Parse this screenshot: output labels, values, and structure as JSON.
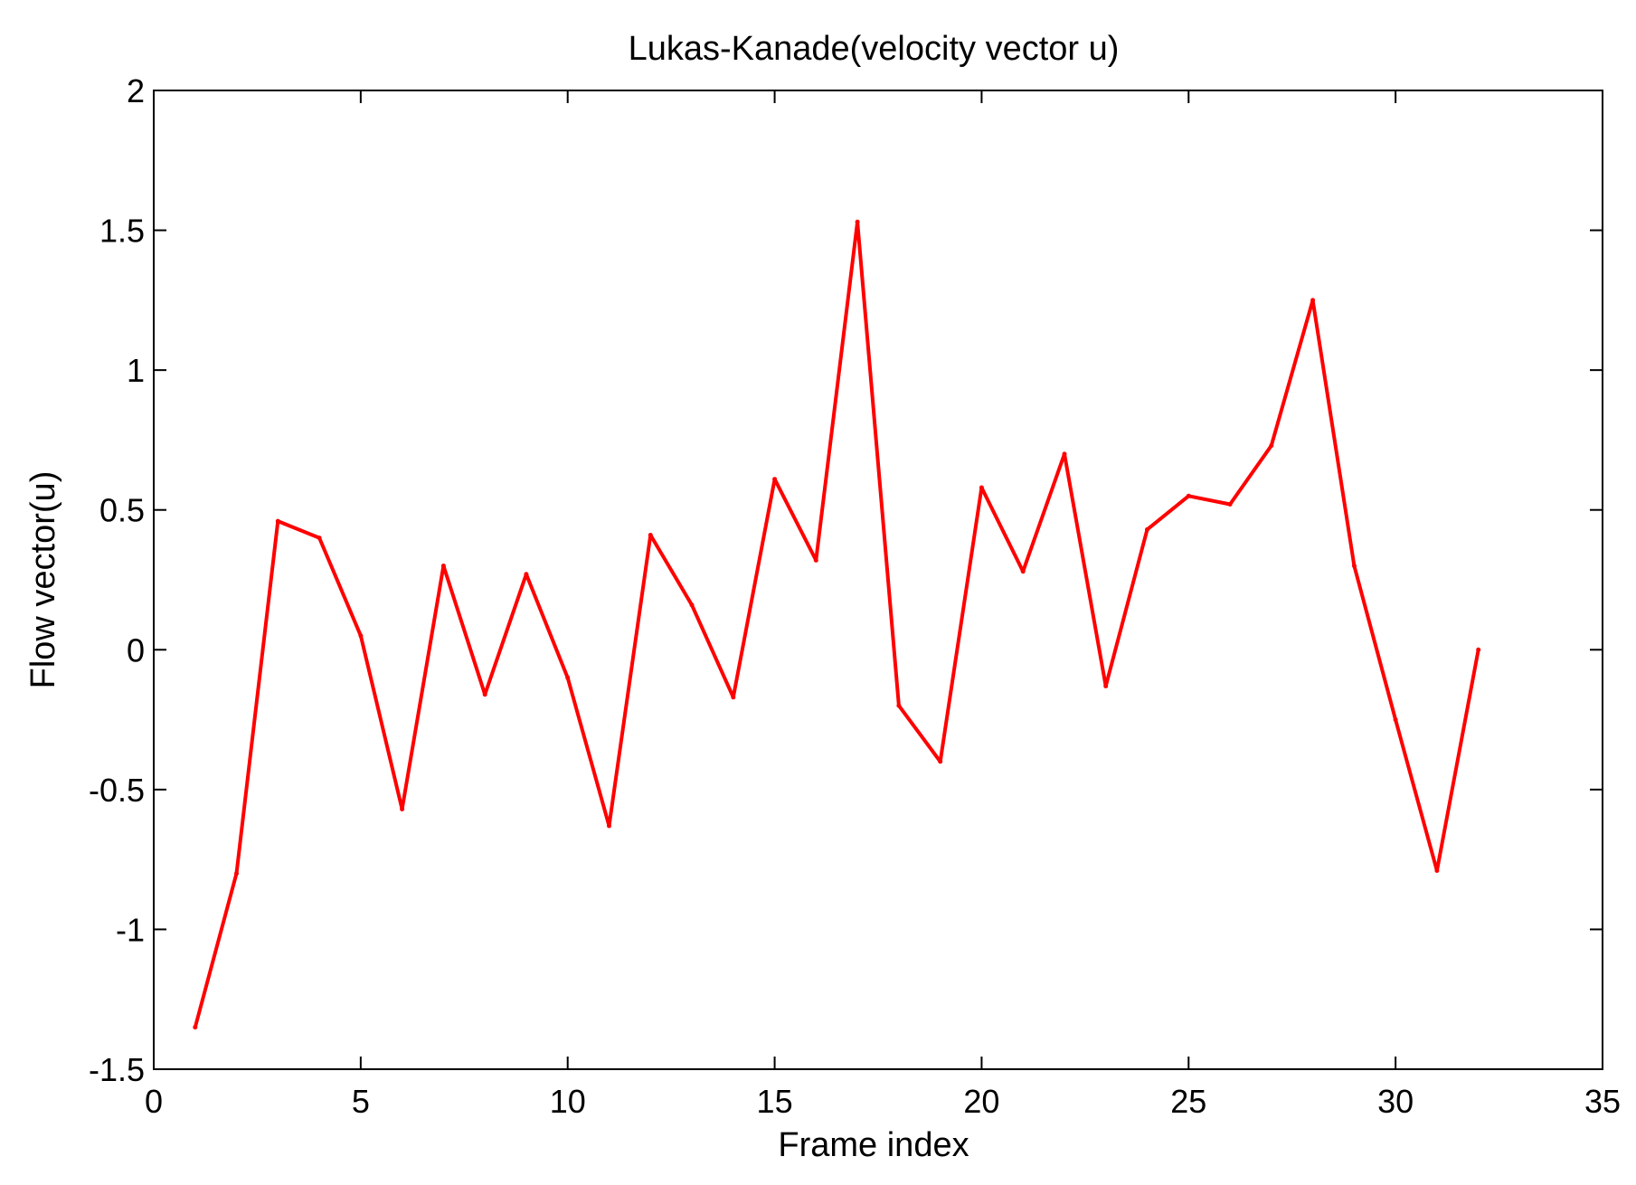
{
  "chart_data": {
    "type": "line",
    "title": "Lukas-Kanade(velocity vector u)",
    "xlabel": "Frame index",
    "ylabel": "Flow vector(u)",
    "xlim": [
      0,
      35
    ],
    "ylim": [
      -1.5,
      2
    ],
    "xticks": [
      0,
      5,
      10,
      15,
      20,
      25,
      30,
      35
    ],
    "yticks": [
      -1.5,
      -1,
      -0.5,
      0,
      0.5,
      1,
      1.5,
      2
    ],
    "xtick_labels": [
      "0",
      "5",
      "10",
      "15",
      "20",
      "25",
      "30",
      "35"
    ],
    "ytick_labels": [
      "-1.5",
      "-1",
      "-0.5",
      "0",
      "0.5",
      "1",
      "1.5",
      "2"
    ],
    "grid": false,
    "series": [
      {
        "color": "#ff0000",
        "x": [
          1,
          2,
          3,
          4,
          5,
          6,
          7,
          8,
          9,
          10,
          11,
          12,
          13,
          14,
          15,
          16,
          17,
          18,
          19,
          20,
          21,
          22,
          23,
          24,
          25,
          26,
          27,
          28,
          29,
          30,
          31,
          32
        ],
        "y": [
          -1.35,
          -0.8,
          0.46,
          0.4,
          0.05,
          -0.57,
          0.3,
          -0.16,
          0.27,
          -0.1,
          -0.63,
          0.41,
          0.16,
          -0.17,
          0.61,
          0.32,
          1.53,
          -0.2,
          -0.4,
          0.58,
          0.28,
          0.7,
          -0.13,
          0.43,
          0.55,
          0.52,
          0.73,
          1.25,
          0.3,
          -0.25,
          -0.79,
          0.0
        ]
      }
    ]
  }
}
